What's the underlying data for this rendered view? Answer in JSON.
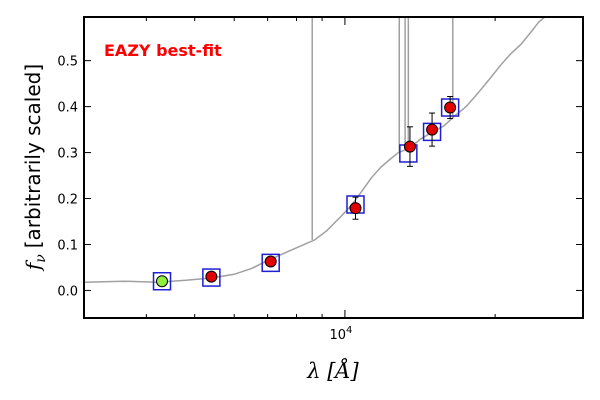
{
  "chart_data": {
    "type": "scatter",
    "annotation": "EAZY best-fit",
    "xlabel": "λ [Å]",
    "ylabel_sym": "f",
    "ylabel_sub": "ν",
    "ylabel_text": "[arbitrarily scaled]",
    "xscale": "log",
    "xlim": [
      3000,
      30000
    ],
    "ylim": [
      -0.06,
      0.595
    ],
    "x_tick_labels": [
      {
        "base": "10",
        "exp": "4",
        "value": 10000
      }
    ],
    "y_ticks": [
      0.0,
      0.1,
      0.2,
      0.3,
      0.4,
      0.5
    ],
    "y_tick_labels": [
      "0.0",
      "0.1",
      "0.2",
      "0.3",
      "0.4",
      "0.5"
    ],
    "grid": false,
    "colors": {
      "template": "#a0a0a0",
      "model_box": "#1f1fd0",
      "observed": "#e00000",
      "highlight": "#90ee40",
      "annotation": "#ff0000"
    },
    "template_spectrum": [
      [
        3000,
        0.018
      ],
      [
        3600,
        0.02
      ],
      [
        4200,
        0.018
      ],
      [
        4800,
        0.022
      ],
      [
        5400,
        0.027
      ],
      [
        6000,
        0.035
      ],
      [
        6500,
        0.048
      ],
      [
        7000,
        0.065
      ],
      [
        7600,
        0.082
      ],
      [
        8200,
        0.098
      ],
      [
        8700,
        0.11
      ],
      [
        9200,
        0.13
      ],
      [
        9800,
        0.16
      ],
      [
        10300,
        0.185
      ],
      [
        10800,
        0.215
      ],
      [
        11300,
        0.245
      ],
      [
        11800,
        0.268
      ],
      [
        12300,
        0.285
      ],
      [
        12800,
        0.3
      ],
      [
        13500,
        0.31
      ],
      [
        14200,
        0.33
      ],
      [
        15000,
        0.345
      ],
      [
        15800,
        0.358
      ],
      [
        16600,
        0.38
      ],
      [
        17500,
        0.4
      ],
      [
        18500,
        0.43
      ],
      [
        19500,
        0.46
      ],
      [
        20500,
        0.49
      ],
      [
        21500,
        0.515
      ],
      [
        22500,
        0.535
      ],
      [
        23500,
        0.56
      ],
      [
        24500,
        0.585
      ],
      [
        25500,
        0.6
      ]
    ],
    "template_spikes": [
      {
        "x": 8600,
        "top": 0.62
      },
      {
        "x": 12850,
        "top": 0.62
      },
      {
        "x": 13200,
        "top": 0.62
      },
      {
        "x": 13400,
        "top": 0.62
      },
      {
        "x": 16450,
        "top": 0.62
      }
    ],
    "model_points": [
      {
        "x": 4300,
        "y": 0.02
      },
      {
        "x": 5400,
        "y": 0.028
      },
      {
        "x": 7100,
        "y": 0.06
      },
      {
        "x": 10500,
        "y": 0.187
      },
      {
        "x": 13400,
        "y": 0.298
      },
      {
        "x": 14950,
        "y": 0.345
      },
      {
        "x": 16250,
        "y": 0.398
      }
    ],
    "observed_points": [
      {
        "x": 4300,
        "y": 0.02,
        "err": 0.0,
        "highlight": true
      },
      {
        "x": 5400,
        "y": 0.03,
        "err": 0.0,
        "highlight": false
      },
      {
        "x": 7100,
        "y": 0.063,
        "err": 0.0,
        "highlight": false
      },
      {
        "x": 10500,
        "y": 0.179,
        "err": 0.024,
        "highlight": false
      },
      {
        "x": 13500,
        "y": 0.313,
        "err": 0.043,
        "highlight": false
      },
      {
        "x": 14950,
        "y": 0.35,
        "err": 0.036,
        "highlight": false
      },
      {
        "x": 16250,
        "y": 0.398,
        "err": 0.024,
        "highlight": false
      }
    ]
  }
}
